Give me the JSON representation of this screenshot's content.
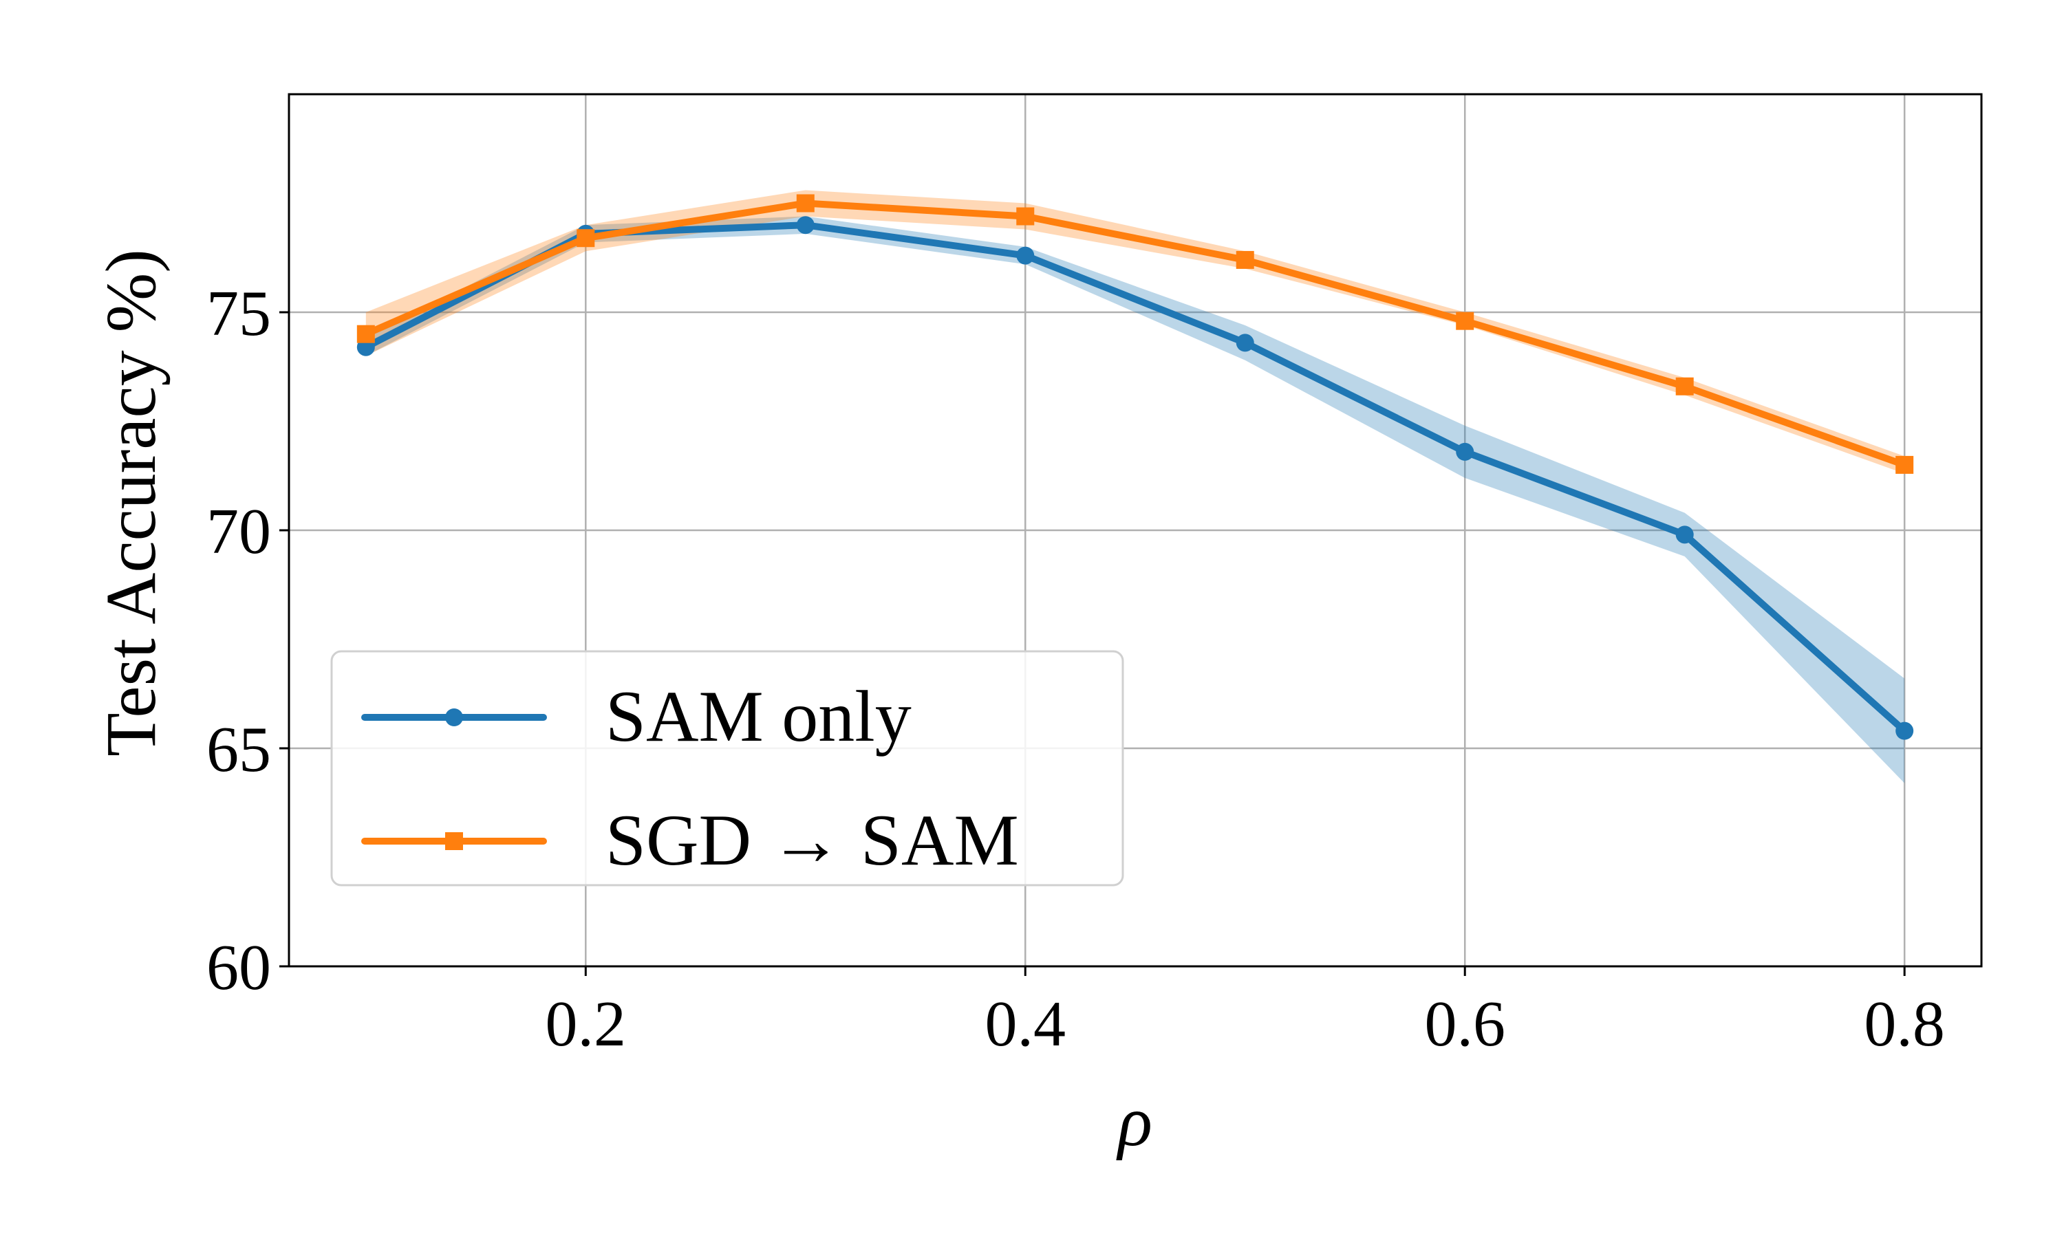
{
  "chart_data": {
    "type": "line",
    "title": "",
    "xlabel": "ρ",
    "ylabel": "Test Accuracy %)",
    "xlim": [
      0.065,
      0.835
    ],
    "ylim": [
      60,
      80
    ],
    "xticks": [
      0.2,
      0.4,
      0.6,
      0.8
    ],
    "xtick_labels": [
      "0.2",
      "0.4",
      "0.6",
      "0.8"
    ],
    "yticks": [
      60,
      65,
      70,
      75
    ],
    "ytick_labels": [
      "60",
      "65",
      "70",
      "75"
    ],
    "grid": true,
    "legend_position": "lower-left",
    "x": [
      0.1,
      0.2,
      0.3,
      0.4,
      0.5,
      0.6,
      0.7,
      0.8
    ],
    "series": [
      {
        "name": "SAM only",
        "color": "#1f77b4",
        "marker": "circle",
        "values": [
          74.2,
          76.8,
          77.0,
          76.3,
          74.3,
          71.8,
          69.9,
          65.4
        ],
        "lower": [
          74.0,
          76.6,
          76.8,
          76.1,
          73.9,
          71.2,
          69.4,
          64.2
        ],
        "upper": [
          74.4,
          77.0,
          77.2,
          76.5,
          74.7,
          72.4,
          70.4,
          66.6
        ]
      },
      {
        "name": "SGD → SAM",
        "color": "#ff7f0e",
        "marker": "square",
        "values": [
          74.5,
          76.7,
          77.5,
          77.2,
          76.2,
          74.8,
          73.3,
          71.5
        ],
        "lower": [
          74.0,
          76.4,
          77.2,
          76.9,
          76.0,
          74.7,
          73.1,
          71.3
        ],
        "upper": [
          75.0,
          77.0,
          77.8,
          77.5,
          76.4,
          75.0,
          73.5,
          71.7
        ]
      }
    ]
  }
}
